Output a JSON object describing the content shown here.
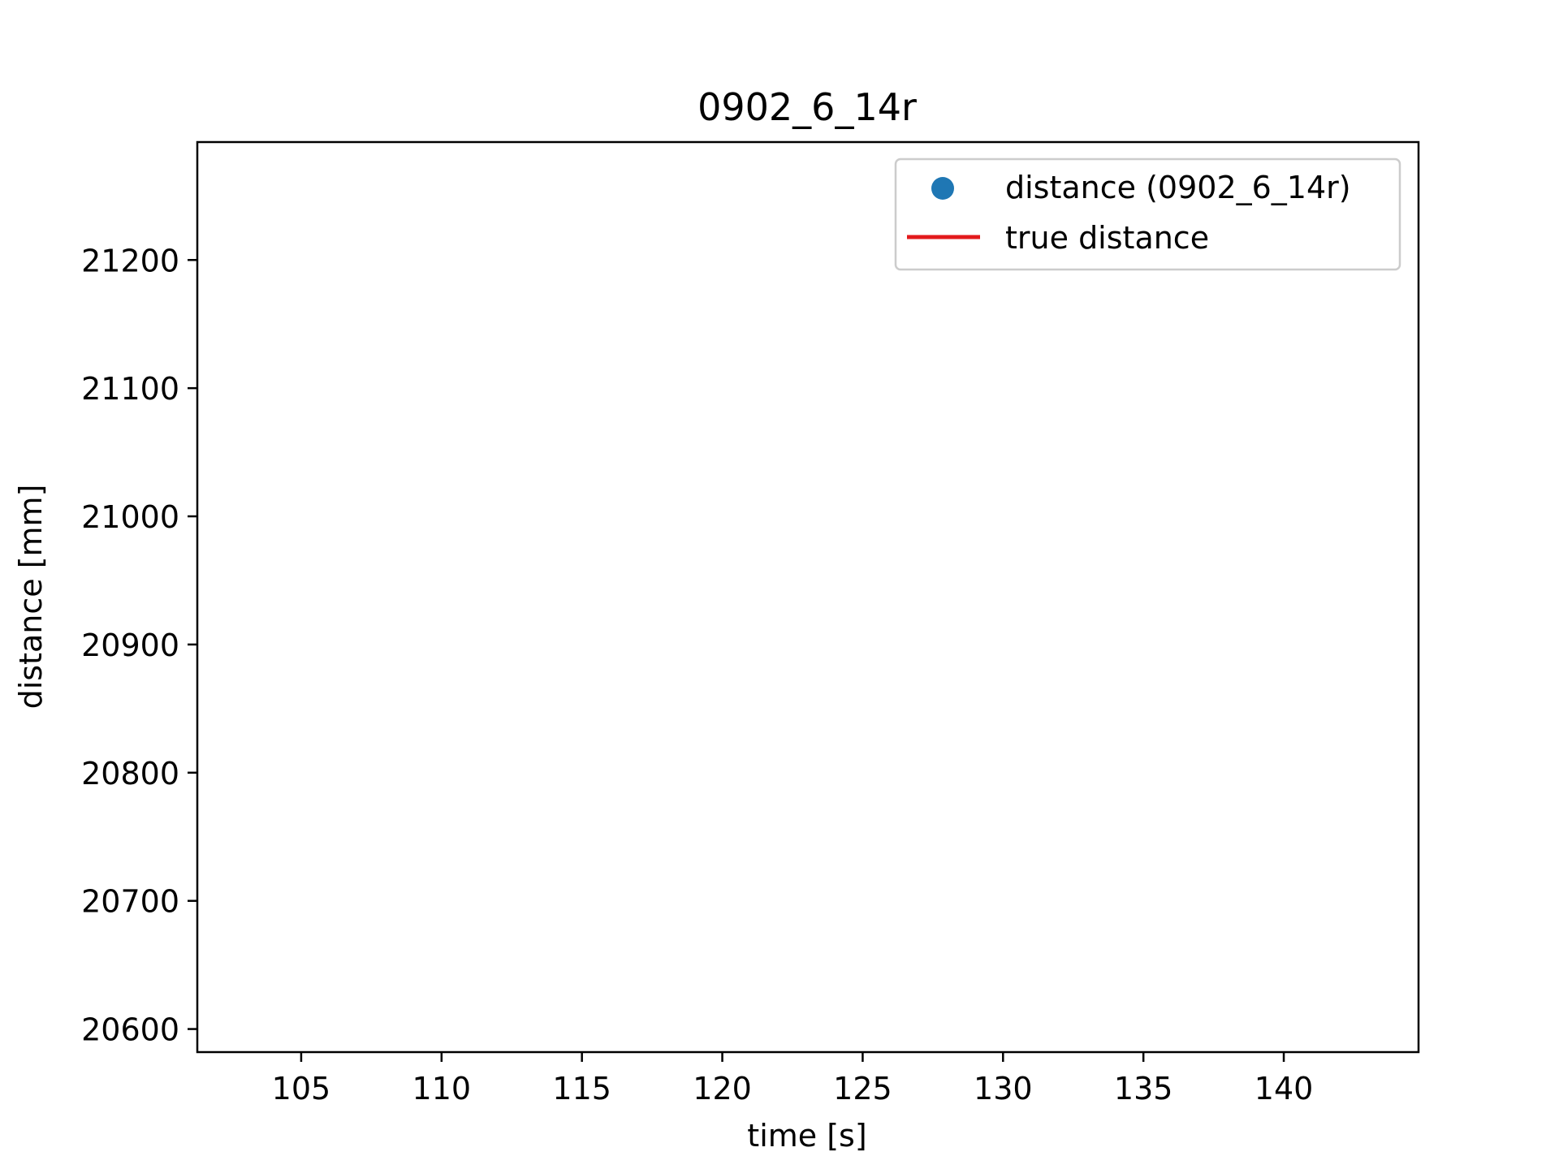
{
  "chart_data": {
    "type": "scatter",
    "title": "0902_6_14r",
    "xlabel": "time [s]",
    "ylabel": "distance [mm]",
    "xlim": [
      101.3,
      144.8
    ],
    "ylim": [
      20582,
      21292
    ],
    "xticks": [
      105,
      110,
      115,
      120,
      125,
      130,
      135,
      140
    ],
    "yticks": [
      20600,
      20700,
      20800,
      20900,
      21000,
      21100,
      21200
    ],
    "grid": false,
    "legend_position": "upper right",
    "series": [
      {
        "name": "distance (0902_6_14r)",
        "kind": "scatter",
        "color": "#1f77b4",
        "points": []
      },
      {
        "name": "true distance",
        "kind": "line",
        "color": "#e31a1c",
        "points": []
      }
    ]
  }
}
